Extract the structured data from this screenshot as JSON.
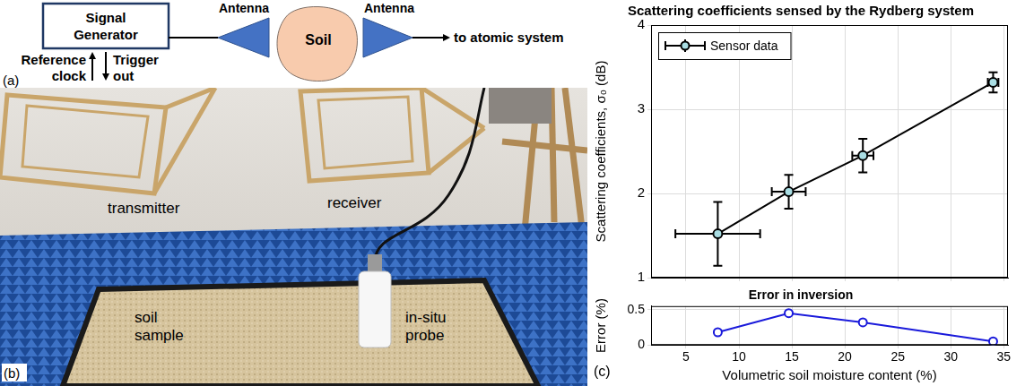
{
  "diagram": {
    "letter": "(a)",
    "generator": "Signal Generator",
    "antennas": [
      "Antenna",
      "Antenna"
    ],
    "sample": "Soil",
    "output": "to atomic system",
    "reference": "Reference clock",
    "trigger": "Trigger out"
  },
  "photo": {
    "letter": "(b)",
    "labels": [
      "transmitter",
      "receiver",
      "soil sample",
      "in-situ probe"
    ]
  },
  "chart_letter": "(c)",
  "chart_data": [
    {
      "type": "scatter",
      "title": "Scattering coefficients sensed by the Rydberg system",
      "y_label": "Scattering coefficients, σ₀ (dB)",
      "xlim": [
        1.7,
        35.4
      ],
      "xticks": [
        5,
        10,
        15,
        20,
        25,
        30,
        35
      ],
      "ylim": [
        1,
        4
      ],
      "yticks": [
        1,
        2,
        3,
        4
      ],
      "grid": true,
      "legend": "upper left",
      "tick_labels": "y",
      "series": [
        {
          "name": "Sensor data",
          "color": "#000000",
          "marker": "circle",
          "line_style": "solid",
          "x": [
            8,
            14.7,
            21.7,
            34
          ],
          "values": [
            1.52,
            2.02,
            2.45,
            3.32
          ],
          "x_errors": [
            4,
            1.6,
            1,
            0.5
          ],
          "y_errors": [
            0.38,
            0.2,
            0.2,
            0.12
          ]
        }
      ]
    },
    {
      "type": "line",
      "title": "Error in inversion",
      "x_label": "Volumetric soil moisture content (%)",
      "y_label": "Error (%)",
      "xlim": [
        1.7,
        35.4
      ],
      "xticks": [
        5,
        10,
        15,
        20,
        25,
        30,
        35
      ],
      "ylim": [
        0,
        0.55
      ],
      "yticks": [
        0,
        0.5
      ],
      "grid": true,
      "series": [
        {
          "color": "#1a1adb",
          "marker": "open_circle",
          "line_style": "solid",
          "x": [
            8,
            14.7,
            21.7,
            34
          ],
          "values": [
            0.18,
            0.45,
            0.32,
            0.05
          ]
        }
      ]
    }
  ]
}
